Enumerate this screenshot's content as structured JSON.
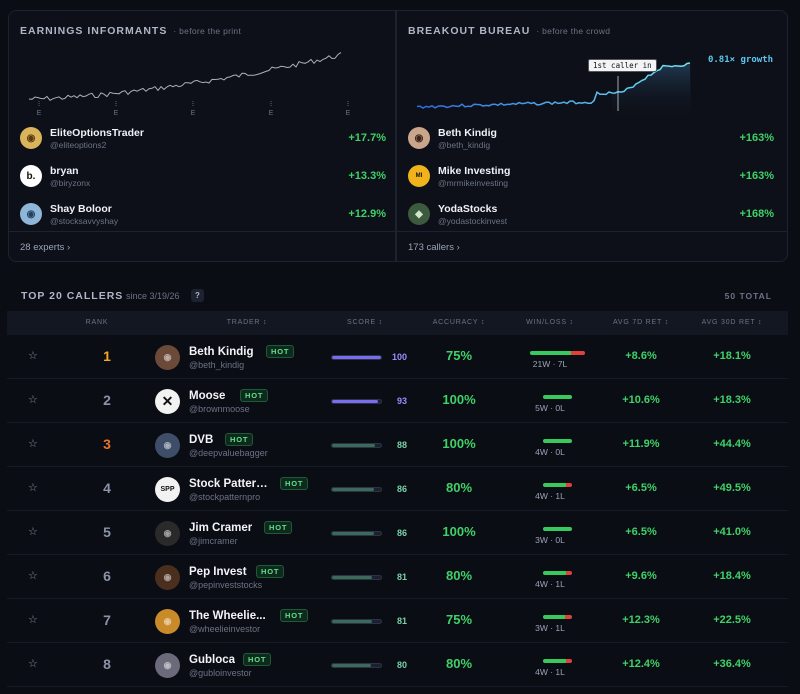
{
  "earnings": {
    "title": "EARNINGS INFORMANTS",
    "subtitle": "· before the print",
    "tick_label": "E",
    "rows": [
      {
        "name": "EliteOptionsTrader",
        "handle": "@eliteoptions2",
        "ret": "+17.7%"
      },
      {
        "name": "bryan",
        "handle": "@biryzonx",
        "ret": "+13.3%",
        "avatar_text": "b."
      },
      {
        "name": "Shay Boloor",
        "handle": "@stocksavvyshay",
        "ret": "+12.9%"
      }
    ],
    "footer": "28 experts ›"
  },
  "breakout": {
    "title": "BREAKOUT BUREAU",
    "subtitle": "· before the crowd",
    "tooltip": "1st caller in",
    "growth": "0.81× growth",
    "rows": [
      {
        "name": "Beth Kindig",
        "handle": "@beth_kindig",
        "ret": "+163%"
      },
      {
        "name": "Mike Investing",
        "handle": "@mrmikeinvesting",
        "ret": "+163%"
      },
      {
        "name": "YodaStocks",
        "handle": "@yodastockinvest",
        "ret": "+168%"
      }
    ],
    "footer": "173 callers ›"
  },
  "section": {
    "title": "TOP 20 CALLERS",
    "since": "since 3/19/26",
    "help": "?",
    "total": "50 TOTAL"
  },
  "columns": [
    "RANK",
    "TRADER",
    "SCORE",
    "ACCURACY",
    "WIN/LOSS",
    "AVG 7D RET",
    "AVG 30D RET"
  ],
  "sort_glyph": "↕",
  "star_glyph": "☆",
  "hot_label": "HOT",
  "colors": {
    "gold": "#f5a623",
    "bronze": "#e8732b",
    "grey": "#8a93a7",
    "green": "#3fd168",
    "purple": "#7a6cf0",
    "teal": "#4bbf8a"
  },
  "rows": [
    {
      "rank": "1",
      "name": "Beth Kindig",
      "handle": "@beth_kindig",
      "score": 100,
      "accuracy": "75%",
      "wins": 21,
      "losses": 7,
      "wl": "21W · 7L",
      "ret7": "+8.6%",
      "ret30": "+18.1%"
    },
    {
      "rank": "2",
      "name": "Moose",
      "handle": "@brownmoose",
      "score": 93,
      "accuracy": "100%",
      "wins": 5,
      "losses": 0,
      "wl": "5W · 0L",
      "ret7": "+10.6%",
      "ret30": "+18.3%"
    },
    {
      "rank": "3",
      "name": "DVB",
      "handle": "@deepvaluebagger",
      "score": 88,
      "accuracy": "100%",
      "wins": 4,
      "losses": 0,
      "wl": "4W · 0L",
      "ret7": "+11.9%",
      "ret30": "+44.4%"
    },
    {
      "rank": "4",
      "name": "Stock Pattern...",
      "handle": "@stockpatternpro",
      "score": 86,
      "accuracy": "80%",
      "wins": 4,
      "losses": 1,
      "wl": "4W · 1L",
      "ret7": "+6.5%",
      "ret30": "+49.5%",
      "avatar_text": "SPP"
    },
    {
      "rank": "5",
      "name": "Jim Cramer",
      "handle": "@jimcramer",
      "score": 86,
      "accuracy": "100%",
      "wins": 3,
      "losses": 0,
      "wl": "3W · 0L",
      "ret7": "+6.5%",
      "ret30": "+41.0%"
    },
    {
      "rank": "6",
      "name": "Pep Invest",
      "handle": "@pepinveststocks",
      "score": 81,
      "accuracy": "80%",
      "wins": 4,
      "losses": 1,
      "wl": "4W · 1L",
      "ret7": "+9.6%",
      "ret30": "+18.4%"
    },
    {
      "rank": "7",
      "name": "The Wheelie...",
      "handle": "@wheelieinvestor",
      "score": 81,
      "accuracy": "75%",
      "wins": 3,
      "losses": 1,
      "wl": "3W · 1L",
      "ret7": "+12.3%",
      "ret30": "+22.5%"
    },
    {
      "rank": "8",
      "name": "Gubloca",
      "handle": "@gubloinvestor",
      "score": 80,
      "accuracy": "80%",
      "wins": 4,
      "losses": 1,
      "wl": "4W · 1L",
      "ret7": "+12.4%",
      "ret30": "+36.4%"
    }
  ]
}
